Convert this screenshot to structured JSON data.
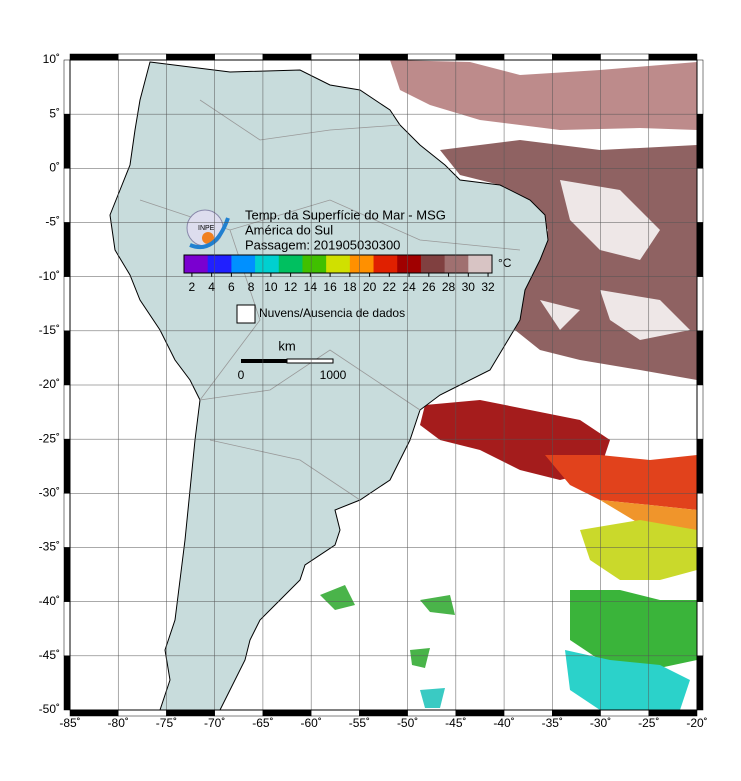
{
  "title_lines": [
    "Temp. da Superfície do Mar - MSG",
    "América do Sul",
    "Passagem: 201905030300"
  ],
  "logo_text": "INPE",
  "colorbar": {
    "unit": "°C",
    "range": [
      1.2,
      32.4
    ],
    "ticks": [
      2,
      4,
      6,
      8,
      10,
      12,
      14,
      16,
      18,
      20,
      22,
      24,
      26,
      28,
      30,
      32
    ],
    "colors": [
      "#7a00d0",
      "#2020ff",
      "#0090ff",
      "#00d0d0",
      "#00c060",
      "#40c000",
      "#d0e000",
      "#ff9000",
      "#e02000",
      "#a00000",
      "#804040",
      "#a07070",
      "#d8c4c4"
    ]
  },
  "legend": {
    "label": "Nuvens/Ausencia de dados"
  },
  "scale_bar": {
    "unit": "km",
    "labels": [
      0,
      1000
    ]
  },
  "map": {
    "lonlim": [
      -85,
      -20
    ],
    "latlim": [
      -50,
      10
    ],
    "lon_ticks": [
      {
        "value": -85,
        "label": "-85˚"
      },
      {
        "value": -80,
        "label": "-80˚"
      },
      {
        "value": -75,
        "label": "-75˚"
      },
      {
        "value": -70,
        "label": "-70˚"
      },
      {
        "value": -65,
        "label": "-65˚"
      },
      {
        "value": -60,
        "label": "-60˚"
      },
      {
        "value": -55,
        "label": "-55˚"
      },
      {
        "value": -50,
        "label": "-50˚"
      },
      {
        "value": -45,
        "label": "-45˚"
      },
      {
        "value": -40,
        "label": "-40˚"
      },
      {
        "value": -35,
        "label": "-35˚"
      },
      {
        "value": -30,
        "label": "-30˚"
      },
      {
        "value": -25,
        "label": "-25˚"
      },
      {
        "value": -20,
        "label": "-20˚"
      }
    ],
    "lat_ticks": [
      {
        "value": 10,
        "label": "10˚"
      },
      {
        "value": 5,
        "label": "5˚"
      },
      {
        "value": 0,
        "label": "0˚"
      },
      {
        "value": -5,
        "label": "-5˚"
      },
      {
        "value": -10,
        "label": "-10˚"
      },
      {
        "value": -15,
        "label": "-15˚"
      },
      {
        "value": -20,
        "label": "-20˚"
      },
      {
        "value": -25,
        "label": "-25˚"
      },
      {
        "value": -30,
        "label": "-30˚"
      },
      {
        "value": -35,
        "label": "-35˚"
      },
      {
        "value": -40,
        "label": "-40˚"
      },
      {
        "value": -45,
        "label": "-45˚"
      },
      {
        "value": -50,
        "label": "-50˚"
      }
    ]
  }
}
